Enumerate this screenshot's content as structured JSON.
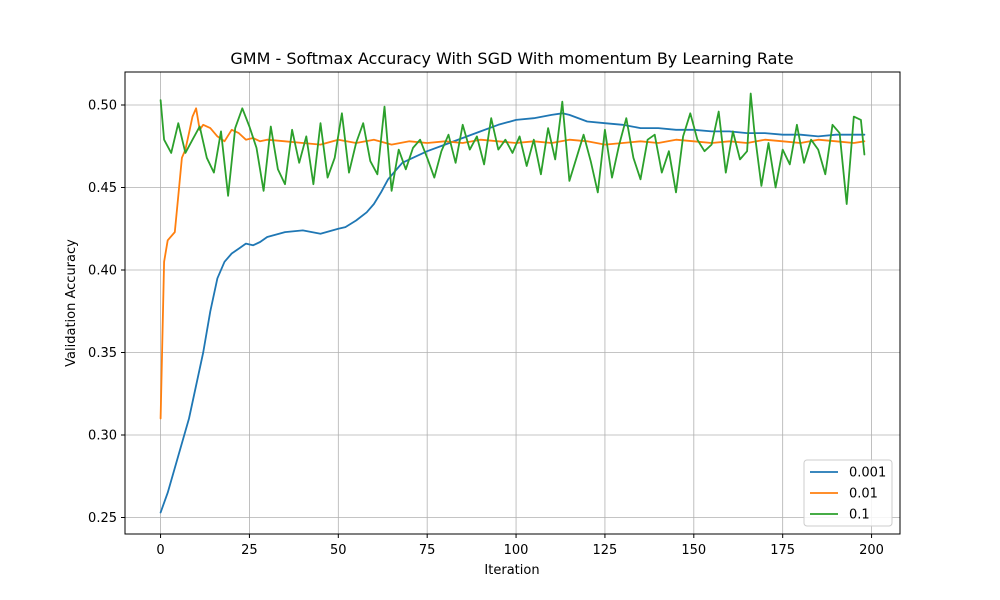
{
  "chart_data": {
    "type": "line",
    "title": "GMM - Softmax Accuracy With SGD With momentum By Learning Rate",
    "xlabel": "Iteration",
    "ylabel": "Validation Accuracy",
    "xlim": [
      -10,
      208
    ],
    "ylim": [
      0.24,
      0.52
    ],
    "xticks": [
      0,
      25,
      50,
      75,
      100,
      125,
      150,
      175,
      200
    ],
    "yticks": [
      0.25,
      0.3,
      0.35,
      0.4,
      0.45,
      0.5
    ],
    "ytick_labels": [
      "0.25",
      "0.30",
      "0.35",
      "0.40",
      "0.45",
      "0.50"
    ],
    "grid": true,
    "legend_position": "bottom-right",
    "series": [
      {
        "name": "0.001",
        "color": "#1f77b4",
        "x": [
          0,
          2,
          4,
          6,
          8,
          10,
          12,
          14,
          16,
          18,
          20,
          22,
          24,
          26,
          28,
          30,
          35,
          40,
          45,
          50,
          52,
          55,
          58,
          60,
          62,
          64,
          66,
          68,
          70,
          75,
          80,
          85,
          90,
          95,
          100,
          105,
          110,
          113,
          115,
          120,
          125,
          130,
          135,
          140,
          145,
          150,
          155,
          160,
          165,
          170,
          175,
          180,
          185,
          190,
          195,
          198
        ],
        "y": [
          0.253,
          0.265,
          0.28,
          0.295,
          0.31,
          0.33,
          0.35,
          0.375,
          0.395,
          0.405,
          0.41,
          0.413,
          0.416,
          0.415,
          0.417,
          0.42,
          0.423,
          0.424,
          0.422,
          0.425,
          0.426,
          0.43,
          0.435,
          0.44,
          0.447,
          0.455,
          0.46,
          0.465,
          0.467,
          0.472,
          0.476,
          0.48,
          0.484,
          0.488,
          0.491,
          0.492,
          0.494,
          0.495,
          0.494,
          0.49,
          0.489,
          0.488,
          0.486,
          0.486,
          0.485,
          0.485,
          0.484,
          0.484,
          0.483,
          0.483,
          0.482,
          0.482,
          0.481,
          0.482,
          0.482,
          0.482
        ]
      },
      {
        "name": "0.01",
        "color": "#ff7f0e",
        "x": [
          0,
          1,
          2,
          4,
          5,
          6,
          7,
          8,
          9,
          10,
          11,
          12,
          14,
          16,
          18,
          20,
          22,
          24,
          26,
          28,
          30,
          35,
          40,
          45,
          50,
          55,
          60,
          65,
          70,
          75,
          80,
          85,
          90,
          95,
          100,
          105,
          110,
          115,
          120,
          125,
          130,
          135,
          140,
          145,
          150,
          155,
          160,
          165,
          170,
          175,
          180,
          185,
          190,
          195,
          198
        ],
        "y": [
          0.31,
          0.405,
          0.418,
          0.423,
          0.445,
          0.468,
          0.473,
          0.483,
          0.493,
          0.498,
          0.485,
          0.488,
          0.486,
          0.481,
          0.478,
          0.485,
          0.483,
          0.479,
          0.48,
          0.478,
          0.479,
          0.478,
          0.477,
          0.476,
          0.479,
          0.477,
          0.479,
          0.476,
          0.478,
          0.477,
          0.478,
          0.477,
          0.479,
          0.478,
          0.477,
          0.478,
          0.477,
          0.479,
          0.478,
          0.476,
          0.477,
          0.478,
          0.477,
          0.479,
          0.478,
          0.477,
          0.478,
          0.477,
          0.479,
          0.478,
          0.477,
          0.479,
          0.478,
          0.477,
          0.478
        ]
      },
      {
        "name": "0.1",
        "color": "#2ca02c",
        "x": [
          0,
          1,
          3,
          5,
          7,
          9,
          11,
          13,
          15,
          17,
          19,
          21,
          23,
          25,
          27,
          29,
          31,
          33,
          35,
          37,
          39,
          41,
          43,
          45,
          47,
          49,
          51,
          53,
          55,
          57,
          59,
          61,
          63,
          65,
          67,
          69,
          71,
          73,
          75,
          77,
          79,
          81,
          83,
          85,
          87,
          89,
          91,
          93,
          95,
          97,
          99,
          101,
          103,
          105,
          107,
          109,
          111,
          113,
          115,
          117,
          119,
          121,
          123,
          125,
          127,
          129,
          131,
          133,
          135,
          137,
          139,
          141,
          143,
          145,
          147,
          149,
          151,
          153,
          155,
          157,
          159,
          161,
          163,
          165,
          166,
          167,
          169,
          171,
          173,
          175,
          177,
          179,
          181,
          183,
          185,
          187,
          189,
          191,
          193,
          195,
          197,
          198
        ],
        "y": [
          0.503,
          0.479,
          0.471,
          0.489,
          0.471,
          0.479,
          0.487,
          0.468,
          0.459,
          0.484,
          0.445,
          0.486,
          0.498,
          0.487,
          0.474,
          0.448,
          0.487,
          0.461,
          0.452,
          0.485,
          0.465,
          0.481,
          0.452,
          0.489,
          0.456,
          0.468,
          0.495,
          0.459,
          0.477,
          0.489,
          0.466,
          0.458,
          0.499,
          0.448,
          0.473,
          0.461,
          0.474,
          0.479,
          0.468,
          0.456,
          0.472,
          0.482,
          0.465,
          0.488,
          0.473,
          0.481,
          0.464,
          0.492,
          0.473,
          0.479,
          0.471,
          0.481,
          0.463,
          0.479,
          0.458,
          0.486,
          0.467,
          0.502,
          0.454,
          0.468,
          0.482,
          0.466,
          0.447,
          0.485,
          0.456,
          0.476,
          0.492,
          0.468,
          0.455,
          0.479,
          0.482,
          0.459,
          0.472,
          0.447,
          0.481,
          0.495,
          0.479,
          0.472,
          0.476,
          0.496,
          0.459,
          0.484,
          0.467,
          0.472,
          0.507,
          0.485,
          0.451,
          0.477,
          0.45,
          0.473,
          0.464,
          0.488,
          0.465,
          0.479,
          0.473,
          0.458,
          0.488,
          0.483,
          0.44,
          0.493,
          0.491,
          0.47
        ]
      }
    ]
  }
}
